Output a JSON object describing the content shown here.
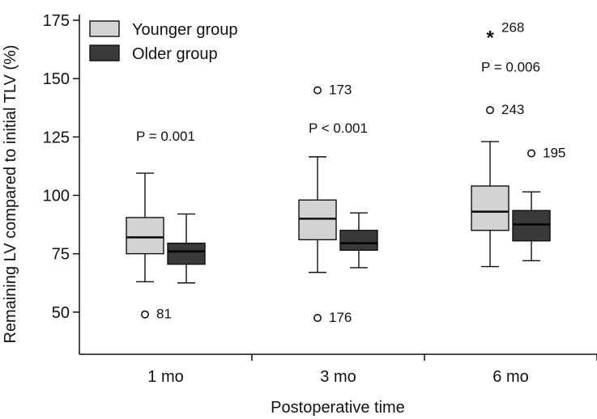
{
  "chart_data": {
    "type": "boxplot",
    "xlabel": "Postoperative time",
    "ylabel": "Remaining LV compared to initial TLV (%)",
    "ylim": [
      25,
      175
    ],
    "yticks": [
      50,
      75,
      100,
      125,
      150,
      175
    ],
    "categories": [
      "1 mo",
      "3 mo",
      "6 mo"
    ],
    "colors": {
      "younger": "#d3d3d3",
      "older": "#3a3a3a",
      "stroke": "#111111"
    },
    "legend": {
      "placement": "top-left",
      "items": [
        {
          "label": "Younger group",
          "series": "younger"
        },
        {
          "label": "Older group",
          "series": "older"
        }
      ]
    },
    "series": [
      {
        "name": "Younger group",
        "key": "younger",
        "boxes": [
          {
            "category": "1 mo",
            "whisker_low": 63,
            "q1": 75,
            "median": 82,
            "q3": 90.5,
            "whisker_high": 109.5
          },
          {
            "category": "3 mo",
            "whisker_low": 67,
            "q1": 81,
            "median": 90,
            "q3": 98,
            "whisker_high": 116.5
          },
          {
            "category": "6 mo",
            "whisker_low": 69.5,
            "q1": 85,
            "median": 93,
            "q3": 104,
            "whisker_high": 123
          }
        ]
      },
      {
        "name": "Older group",
        "key": "older",
        "boxes": [
          {
            "category": "1 mo",
            "whisker_low": 62.5,
            "q1": 70.5,
            "median": 76,
            "q3": 79.5,
            "whisker_high": 92
          },
          {
            "category": "3 mo",
            "whisker_low": 69,
            "q1": 76.5,
            "median": 79.5,
            "q3": 85,
            "whisker_high": 92.5
          },
          {
            "category": "6 mo",
            "whisker_low": 72,
            "q1": 80.5,
            "median": 87.5,
            "q3": 93.5,
            "whisker_high": 101.5
          }
        ]
      }
    ],
    "outliers": [
      {
        "category": "1 mo",
        "series": "younger",
        "value": 49,
        "label": "81",
        "marker": "circle"
      },
      {
        "category": "3 mo",
        "series": "younger",
        "value": 145,
        "label": "173",
        "marker": "circle"
      },
      {
        "category": "3 mo",
        "series": "younger",
        "value": 47.5,
        "label": "176",
        "marker": "circle"
      },
      {
        "category": "6 mo",
        "series": "younger",
        "value": 169,
        "label": "268",
        "marker": "star"
      },
      {
        "category": "6 mo",
        "series": "younger",
        "value": 136.5,
        "label": "243",
        "marker": "circle"
      },
      {
        "category": "6 mo",
        "series": "older",
        "value": 118,
        "label": "195",
        "marker": "circle"
      }
    ],
    "annotations": [
      {
        "category": "1 mo",
        "text": "P = 0.001",
        "value": 125.5
      },
      {
        "category": "3 mo",
        "text": "P < 0.001",
        "value": 129
      },
      {
        "category": "6 mo",
        "text": "P = 0.006",
        "value": 155
      }
    ]
  }
}
